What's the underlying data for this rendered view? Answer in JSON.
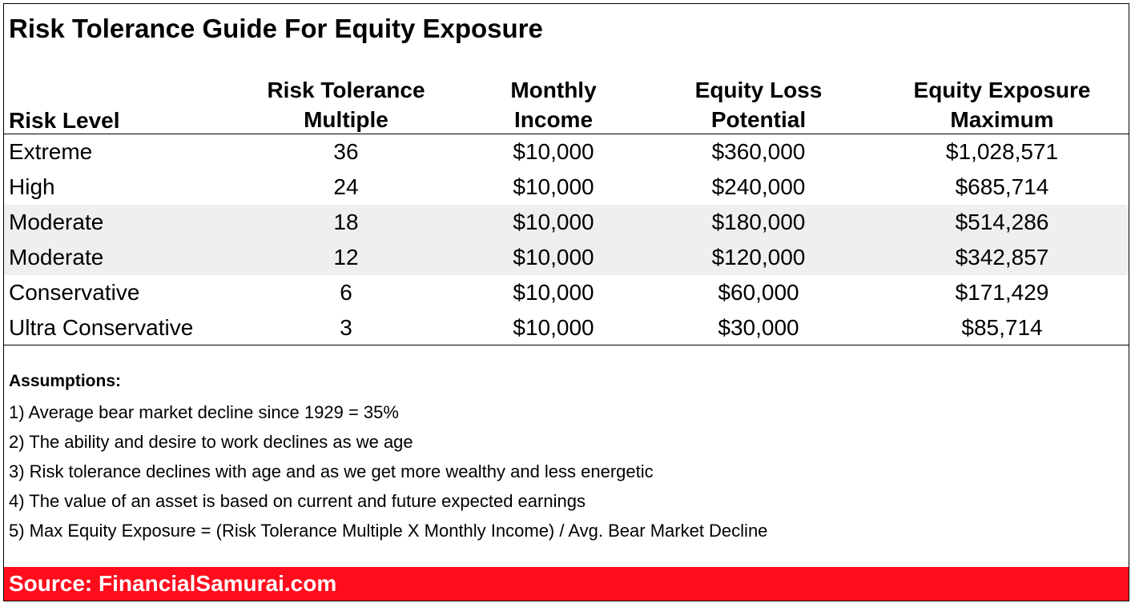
{
  "title": "Risk Tolerance Guide For Equity Exposure",
  "headers": {
    "risk_level": "Risk Level",
    "multiple_l1": "Risk Tolerance",
    "multiple_l2": "Multiple",
    "income_l1": "Monthly",
    "income_l2": "Income",
    "loss_l1": "Equity Loss",
    "loss_l2": "Potential",
    "exposure_l1": "Equity Exposure",
    "exposure_l2": "Maximum"
  },
  "rows": [
    {
      "level": "Extreme",
      "multiple": "36",
      "income": "$10,000",
      "loss": "$360,000",
      "exposure": "$1,028,571"
    },
    {
      "level": "High",
      "multiple": "24",
      "income": "$10,000",
      "loss": "$240,000",
      "exposure": "$685,714"
    },
    {
      "level": "Moderate",
      "multiple": "18",
      "income": "$10,000",
      "loss": "$180,000",
      "exposure": "$514,286"
    },
    {
      "level": "Moderate",
      "multiple": "12",
      "income": "$10,000",
      "loss": "$120,000",
      "exposure": "$342,857"
    },
    {
      "level": "Conservative",
      "multiple": "6",
      "income": "$10,000",
      "loss": "$60,000",
      "exposure": "$171,429"
    },
    {
      "level": "Ultra Conservative",
      "multiple": "3",
      "income": "$10,000",
      "loss": "$30,000",
      "exposure": "$85,714"
    }
  ],
  "assumptions": {
    "heading": "Assumptions:",
    "items": [
      "1) Average bear market decline since 1929 = 35%",
      "2) The ability and desire to work declines as we age",
      "3) Risk tolerance declines with age and as we get more wealthy and less energetic",
      "4) The value of an asset is based on current and future expected earnings",
      "5) Max Equity Exposure = (Risk Tolerance Multiple X Monthly Income) / Avg. Bear Market Decline"
    ]
  },
  "source": "Source: FinancialSamurai.com",
  "colors": {
    "source_bar": "#ff0d1d",
    "shaded_row": "#efefef"
  }
}
